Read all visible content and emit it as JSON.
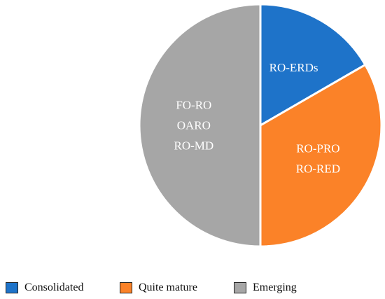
{
  "chart_data": {
    "type": "pie",
    "slices": [
      {
        "category": "Consolidated",
        "value": 1,
        "color": "#1e73c9",
        "labels": [
          "RO-ERDs"
        ]
      },
      {
        "category": "Quite mature",
        "value": 2,
        "color": "#fb8228",
        "labels": [
          "RO-PRO",
          "RO-RED"
        ]
      },
      {
        "category": "Emerging",
        "value": 3,
        "color": "#a6a6a6",
        "labels": [
          "FO-RO",
          "OARO",
          "RO-MD"
        ]
      }
    ],
    "legend": {
      "position": "bottom",
      "entries": [
        {
          "label": "Consolidated",
          "color": "#1e73c9"
        },
        {
          "label": "Quite mature",
          "color": "#fb8228"
        },
        {
          "label": "Emerging",
          "color": "#a6a6a6"
        }
      ]
    }
  }
}
